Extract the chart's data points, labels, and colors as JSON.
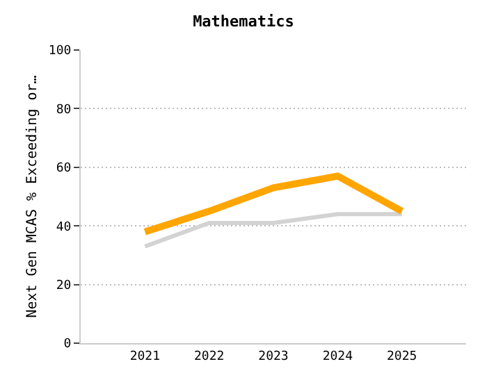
{
  "chart_data": {
    "type": "line",
    "title": "Mathematics",
    "ylabel": "Next Gen MCAS % Exceeding or…",
    "categories": [
      "2021",
      "2022",
      "2023",
      "2024",
      "2025"
    ],
    "series": [
      {
        "color": "#d3d3d3",
        "values": [
          33,
          41,
          41,
          44,
          44
        ]
      },
      {
        "color": "#ffa500",
        "values": [
          38,
          45,
          53,
          57,
          45
        ]
      }
    ],
    "ylim": [
      0,
      100
    ],
    "yticks": [
      0,
      20,
      40,
      60,
      80,
      100
    ],
    "grid": "y",
    "marker": "none",
    "line_style": "solid"
  }
}
